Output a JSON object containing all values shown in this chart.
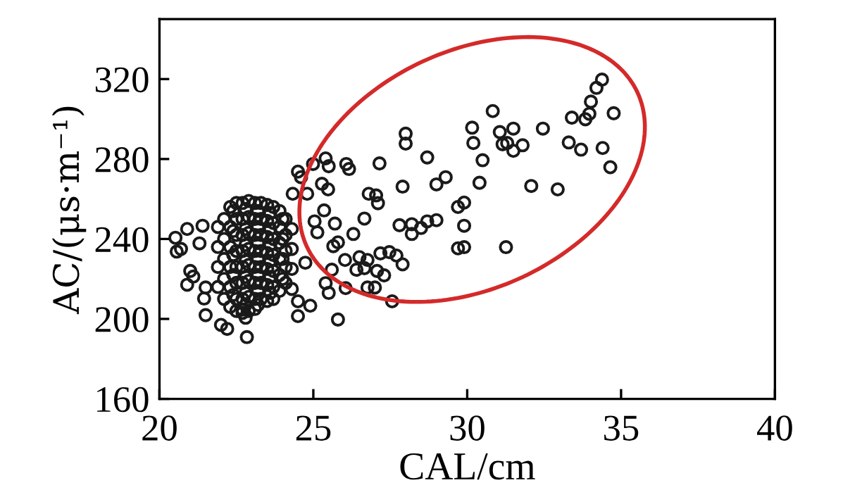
{
  "chart_data": {
    "type": "scatter",
    "xlabel": "CAL/cm",
    "ylabel": "AC/(μs·m⁻¹)",
    "xlim": [
      20,
      40
    ],
    "ylim": [
      160,
      350
    ],
    "xticks": [
      20,
      25,
      30,
      35,
      40
    ],
    "yticks": [
      160,
      200,
      240,
      280,
      320
    ],
    "marker": "circle",
    "grid": false,
    "legend": false,
    "series": [
      {
        "color": "#1a1a1a",
        "x": [
          34.38,
          34.2,
          34.02,
          33.97,
          33.84,
          34.76,
          33.4,
          33.3,
          33.7,
          34.4,
          34.65,
          32.94,
          32.08,
          32.46,
          31.8,
          31.5,
          31.06,
          31.15,
          31.3,
          31.5,
          30.83,
          30.16,
          30.2,
          30.5,
          30.4,
          29.9,
          29.9,
          29.7,
          29.9,
          29.7,
          31.26,
          29.3,
          29.0,
          28.7,
          28.0,
          28.0,
          27.9,
          27.8,
          28.2,
          28.2,
          28.5,
          28.7,
          29.0,
          27.15,
          27.04,
          27.1,
          26.8,
          26.66,
          26.07,
          26.16,
          25.4,
          25.5,
          25.28,
          25.48,
          25.35,
          25.7,
          26.3,
          25.65,
          25.8,
          26.03,
          26.5,
          26.76,
          27.18,
          27.47,
          27.7,
          27.9,
          27.3,
          27.07,
          26.66,
          26.4,
          26.05,
          26.76,
          27.0,
          27.56,
          25.8,
          25.6,
          25.4,
          25.5,
          24.9,
          24.5,
          24.5,
          24.74,
          24.5,
          24.6,
          24.99,
          24.33,
          24.8,
          25.04,
          25.13,
          20.52,
          20.56,
          20.9,
          20.7,
          21.0,
          21.1,
          20.9,
          21.4,
          21.45,
          21.5,
          22.0,
          22.2,
          22.84,
          22.8,
          22.7,
          21.5,
          21.3,
          22.1,
          22.1,
          22.1,
          22.1,
          22.1,
          22.3,
          22.3,
          22.3,
          22.3,
          22.3,
          22.3,
          22.5,
          22.5,
          22.5,
          22.5,
          22.5,
          22.5,
          22.5,
          22.5,
          22.7,
          22.7,
          22.7,
          22.7,
          22.7,
          22.7,
          22.7,
          22.7,
          22.9,
          22.9,
          22.9,
          22.9,
          22.9,
          22.9,
          22.9,
          22.9,
          23.1,
          23.1,
          23.1,
          23.1,
          23.1,
          23.1,
          23.1,
          23.1,
          23.3,
          23.3,
          23.3,
          23.3,
          23.3,
          23.3,
          23.3,
          23.5,
          23.5,
          23.5,
          23.5,
          23.5,
          23.5,
          23.5,
          23.7,
          23.7,
          23.7,
          23.7,
          23.7,
          23.7,
          23.7,
          23.9,
          23.9,
          23.9,
          23.9,
          23.9,
          23.9,
          24.1,
          24.1,
          24.1,
          24.1,
          24.1,
          21.9,
          21.9,
          21.9,
          21.9,
          24.3,
          24.3,
          24.3,
          24.3,
          22.4,
          22.4,
          22.4,
          22.4,
          22.4,
          22.8,
          22.8,
          22.8,
          22.8,
          22.8,
          22.8,
          22.8,
          23.2,
          23.2,
          23.2,
          23.2,
          23.2,
          23.2,
          23.2,
          23.6,
          23.6,
          23.6,
          23.6,
          23.6,
          23.6,
          24.0,
          24.0,
          24.0,
          24.0
        ],
        "values": [
          319.7,
          315.6,
          308.7,
          302.6,
          299.9,
          302.9,
          300.7,
          288.3,
          284.7,
          285.5,
          275.9,
          264.8,
          266.5,
          295.2,
          286.9,
          295.2,
          293.5,
          287.4,
          288,
          284.1,
          304,
          295.7,
          288,
          279.4,
          268.1,
          246.6,
          258.2,
          256,
          235.9,
          235.3,
          235.9,
          270.9,
          267.3,
          280.8,
          292.7,
          287.7,
          266.2,
          246.9,
          247.4,
          242.5,
          245.5,
          248.8,
          249.4,
          277.8,
          261.8,
          257.9,
          262.6,
          250.2,
          277.5,
          275,
          280.3,
          276.4,
          267.6,
          264.8,
          254.3,
          247.7,
          242.5,
          236.4,
          238.3,
          229.5,
          230.9,
          229.5,
          232.8,
          233.4,
          231.7,
          227.3,
          221.8,
          224,
          225.4,
          224.6,
          215.4,
          215.7,
          215.7,
          208.8,
          199.7,
          224.6,
          217.9,
          213,
          206.6,
          201.4,
          208.8,
          228.1,
          273.7,
          270.9,
          277.5,
          262.6,
          262.6,
          248.8,
          243.3,
          240.6,
          233.7,
          245,
          235,
          224,
          221.2,
          217.1,
          246.6,
          210.2,
          201.9,
          197,
          195,
          190.9,
          200.6,
          204.7,
          215.7,
          237.8,
          250,
          240,
          230,
          220,
          210,
          256,
          246,
          236,
          226,
          216,
          206,
          258,
          250,
          242,
          234,
          226,
          218,
          210,
          204,
          258,
          250,
          242,
          234,
          226,
          218,
          210,
          203,
          259,
          251,
          243,
          235,
          227,
          219,
          211,
          204,
          258,
          250,
          242,
          234,
          226,
          218,
          210,
          205,
          258,
          250,
          242,
          234,
          226,
          218,
          210,
          257,
          249,
          241,
          233,
          225,
          217,
          209,
          256,
          248,
          240,
          232,
          224,
          216,
          210,
          254,
          246,
          238,
          230,
          222,
          214,
          250,
          242,
          234,
          226,
          218,
          246,
          236,
          226,
          216,
          245,
          235,
          225,
          215,
          254,
          244,
          232,
          222,
          212,
          255,
          245,
          237,
          229,
          221,
          213,
          207,
          254,
          246,
          238,
          230,
          222,
          214,
          207,
          253,
          245,
          237,
          229,
          221,
          213,
          250,
          240,
          230,
          220
        ]
      }
    ]
  }
}
